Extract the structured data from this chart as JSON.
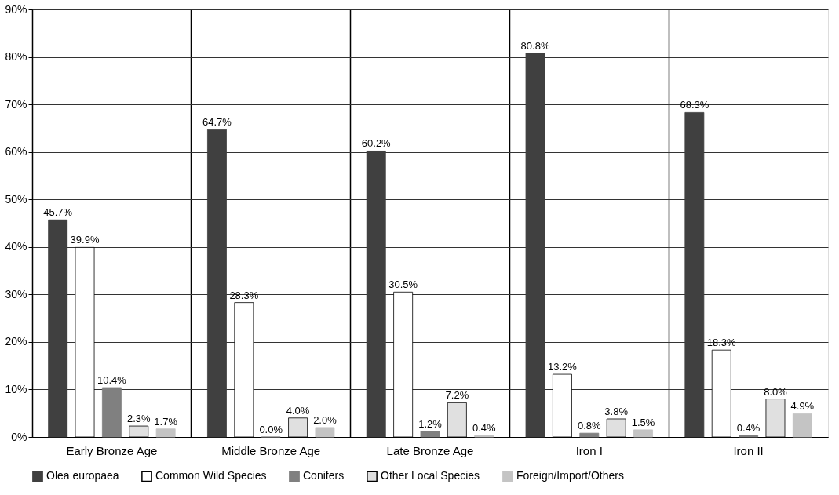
{
  "chart_data": {
    "type": "bar",
    "categories": [
      "Early Bronze Age",
      "Middle Bronze Age",
      "Late Bronze Age",
      "Iron  I",
      "Iron  II"
    ],
    "series": [
      {
        "name": "Olea europaea",
        "color": "#404040",
        "values": [
          45.7,
          64.7,
          60.2,
          80.8,
          68.3
        ],
        "value_labels": [
          "45.7%",
          "64.7%",
          "60.2%",
          "80.8%",
          "68.3%"
        ]
      },
      {
        "name": "Common Wild Species",
        "color": "#ffffff",
        "values": [
          39.9,
          28.3,
          30.5,
          13.2,
          18.3
        ],
        "value_labels": [
          "39.9%",
          "28.3%",
          "30.5%",
          "13.2%",
          "18.3%"
        ]
      },
      {
        "name": "Conifers",
        "color": "#808080",
        "values": [
          10.4,
          0.0,
          1.2,
          0.8,
          0.4
        ],
        "value_labels": [
          "10.4%",
          "0.0%",
          "1.2%",
          "0.8%",
          "0.4%"
        ]
      },
      {
        "name": "Other Local Species",
        "color": "#e0e0e0",
        "values": [
          2.3,
          4.0,
          7.2,
          3.8,
          8.0
        ],
        "value_labels": [
          "2.3%",
          "4.0%",
          "7.2%",
          "3.8%",
          "8.0%"
        ]
      },
      {
        "name": "Foreign/Import/Others",
        "color": "#c4c4c4",
        "values": [
          1.7,
          2.0,
          0.4,
          1.5,
          4.9
        ],
        "value_labels": [
          "1.7%",
          "2.0%",
          "0.4%",
          "1.5%",
          "4.9%"
        ]
      }
    ],
    "ylim": [
      0,
      90
    ],
    "yticks": [
      {
        "value": 0,
        "label": "0%"
      },
      {
        "value": 10,
        "label": "10%"
      },
      {
        "value": 20,
        "label": "20%"
      },
      {
        "value": 30,
        "label": "30%"
      },
      {
        "value": 40,
        "label": "40%"
      },
      {
        "value": 50,
        "label": "50%"
      },
      {
        "value": 60,
        "label": "60%"
      },
      {
        "value": 70,
        "label": "70%"
      },
      {
        "value": 80,
        "label": "80%"
      },
      {
        "value": 90,
        "label": "90%"
      }
    ],
    "grid": true,
    "legend": "bottom"
  }
}
